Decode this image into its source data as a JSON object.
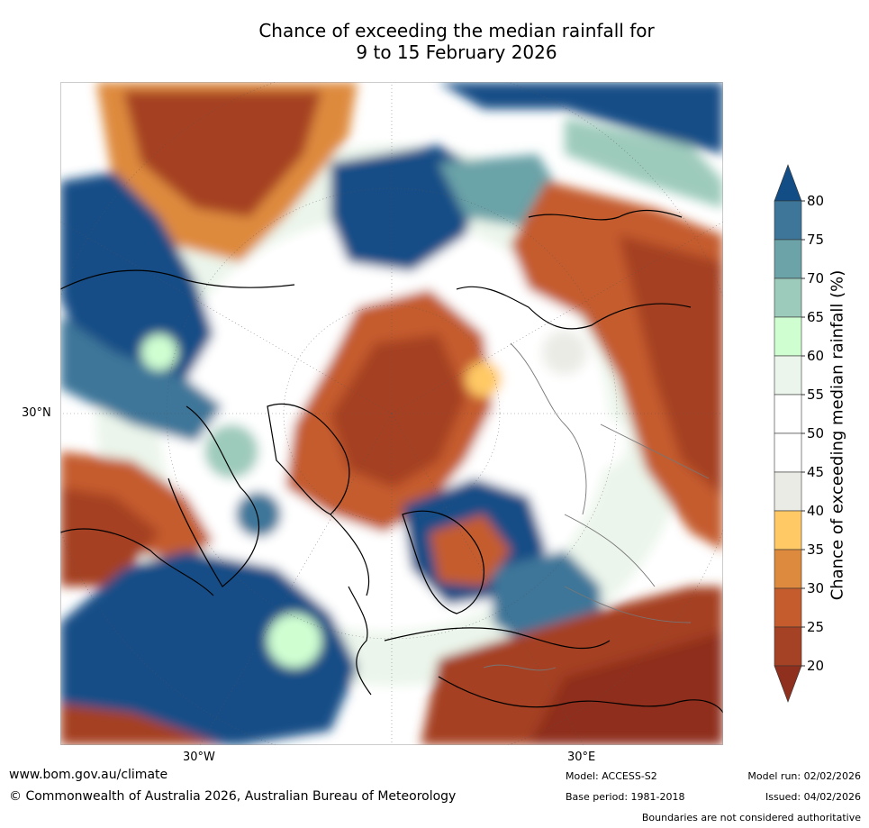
{
  "title": {
    "line1": "Chance of exceeding the median rainfall for",
    "line2": "9 to 15 February 2026"
  },
  "map": {
    "lat_label": "30°N",
    "lon_labels": [
      "30°W",
      "30°E"
    ]
  },
  "colorbar": {
    "label": "Chance of exceeding median rainfall (%)",
    "ticks": [
      "80",
      "75",
      "70",
      "65",
      "60",
      "55",
      "50",
      "45",
      "40",
      "35",
      "30",
      "25",
      "20"
    ],
    "colors": [
      "#124d86",
      "#3e7699",
      "#6ba3a8",
      "#9dcbbb",
      "#cfffd1",
      "#ebf5eb",
      "#ffffff",
      "#ffffff",
      "#ebebe6",
      "#ffc965",
      "#de8a3e",
      "#c45c2d",
      "#a54124",
      "#8f2f1d"
    ]
  },
  "footer": {
    "website": "www.bom.gov.au/climate",
    "copyright": "© Commonwealth of Australia 2026, Australian Bureau of Meteorology",
    "model": "Model: ACCESS-S2",
    "model_run": "Model run: 02/02/2026",
    "base_period": "Base period: 1981-2018",
    "issued": "Issued: 04/02/2026",
    "disclaimer": "Boundaries are not considered authoritative"
  }
}
